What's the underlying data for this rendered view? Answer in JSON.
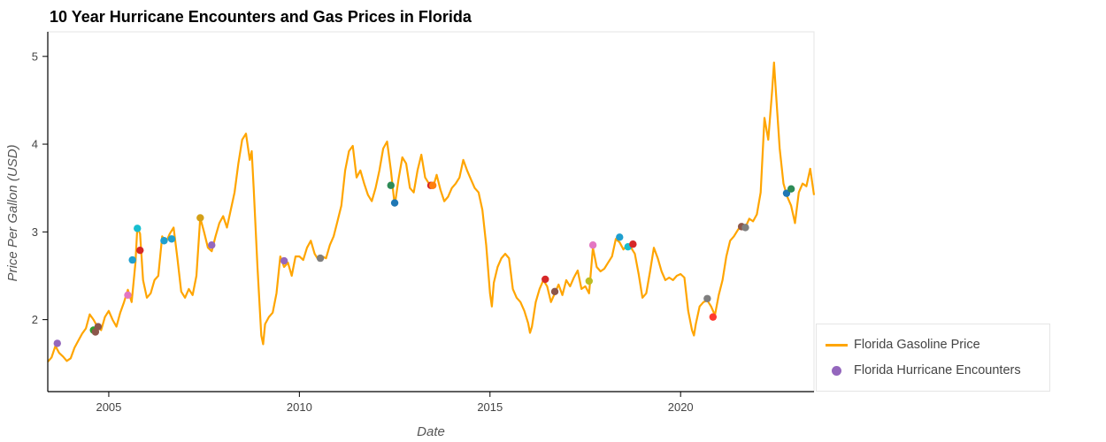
{
  "chart_data": {
    "type": "line",
    "title": "10 Year Hurricane Encounters and Gas Prices in Florida",
    "xlabel": "Date",
    "ylabel": "Price Per Gallon (USD)",
    "xlim": [
      2003.4,
      2023.5
    ],
    "ylim": [
      1.18,
      5.28
    ],
    "x_ticks": [
      {
        "value": 2005,
        "label": "2005"
      },
      {
        "value": 2010,
        "label": "2010"
      },
      {
        "value": 2015,
        "label": "2015"
      },
      {
        "value": 2020,
        "label": "2020"
      }
    ],
    "y_ticks": [
      {
        "value": 2,
        "label": "2"
      },
      {
        "value": 3,
        "label": "3"
      },
      {
        "value": 4,
        "label": "4"
      },
      {
        "value": 5,
        "label": "5"
      }
    ],
    "grid": false,
    "legend_position": "bottom-right-outside",
    "series": [
      {
        "name": "Florida Gasoline Price",
        "kind": "line",
        "color": "#ffa500",
        "points": [
          [
            2003.4,
            1.52
          ],
          [
            2003.5,
            1.57
          ],
          [
            2003.6,
            1.7
          ],
          [
            2003.7,
            1.62
          ],
          [
            2003.8,
            1.58
          ],
          [
            2003.9,
            1.53
          ],
          [
            2004.0,
            1.56
          ],
          [
            2004.1,
            1.68
          ],
          [
            2004.2,
            1.76
          ],
          [
            2004.3,
            1.84
          ],
          [
            2004.4,
            1.9
          ],
          [
            2004.5,
            2.06
          ],
          [
            2004.6,
            2.0
          ],
          [
            2004.7,
            1.92
          ],
          [
            2004.8,
            1.88
          ],
          [
            2004.9,
            2.03
          ],
          [
            2005.0,
            2.1
          ],
          [
            2005.1,
            2.0
          ],
          [
            2005.2,
            1.92
          ],
          [
            2005.3,
            2.08
          ],
          [
            2005.4,
            2.2
          ],
          [
            2005.5,
            2.34
          ],
          [
            2005.6,
            2.2
          ],
          [
            2005.7,
            2.65
          ],
          [
            2005.75,
            3.05
          ],
          [
            2005.82,
            2.98
          ],
          [
            2005.9,
            2.45
          ],
          [
            2006.0,
            2.25
          ],
          [
            2006.1,
            2.3
          ],
          [
            2006.2,
            2.45
          ],
          [
            2006.3,
            2.5
          ],
          [
            2006.4,
            2.95
          ],
          [
            2006.5,
            2.88
          ],
          [
            2006.6,
            2.98
          ],
          [
            2006.7,
            3.05
          ],
          [
            2006.8,
            2.7
          ],
          [
            2006.9,
            2.32
          ],
          [
            2007.0,
            2.25
          ],
          [
            2007.1,
            2.35
          ],
          [
            2007.2,
            2.28
          ],
          [
            2007.3,
            2.5
          ],
          [
            2007.4,
            3.16
          ],
          [
            2007.5,
            3.0
          ],
          [
            2007.6,
            2.82
          ],
          [
            2007.7,
            2.78
          ],
          [
            2007.8,
            2.95
          ],
          [
            2007.9,
            3.1
          ],
          [
            2008.0,
            3.18
          ],
          [
            2008.1,
            3.05
          ],
          [
            2008.2,
            3.25
          ],
          [
            2008.3,
            3.45
          ],
          [
            2008.4,
            3.78
          ],
          [
            2008.5,
            4.05
          ],
          [
            2008.6,
            4.12
          ],
          [
            2008.7,
            3.82
          ],
          [
            2008.75,
            3.92
          ],
          [
            2008.8,
            3.5
          ],
          [
            2008.9,
            2.6
          ],
          [
            2009.0,
            1.82
          ],
          [
            2009.05,
            1.72
          ],
          [
            2009.1,
            1.95
          ],
          [
            2009.2,
            2.03
          ],
          [
            2009.3,
            2.08
          ],
          [
            2009.4,
            2.3
          ],
          [
            2009.5,
            2.72
          ],
          [
            2009.6,
            2.6
          ],
          [
            2009.7,
            2.65
          ],
          [
            2009.8,
            2.5
          ],
          [
            2009.9,
            2.72
          ],
          [
            2010.0,
            2.72
          ],
          [
            2010.1,
            2.68
          ],
          [
            2010.2,
            2.82
          ],
          [
            2010.3,
            2.9
          ],
          [
            2010.4,
            2.75
          ],
          [
            2010.5,
            2.68
          ],
          [
            2010.6,
            2.72
          ],
          [
            2010.7,
            2.7
          ],
          [
            2010.8,
            2.85
          ],
          [
            2010.9,
            2.95
          ],
          [
            2011.0,
            3.12
          ],
          [
            2011.1,
            3.3
          ],
          [
            2011.2,
            3.7
          ],
          [
            2011.3,
            3.92
          ],
          [
            2011.4,
            3.98
          ],
          [
            2011.5,
            3.62
          ],
          [
            2011.6,
            3.7
          ],
          [
            2011.7,
            3.55
          ],
          [
            2011.8,
            3.42
          ],
          [
            2011.9,
            3.35
          ],
          [
            2012.0,
            3.5
          ],
          [
            2012.1,
            3.7
          ],
          [
            2012.2,
            3.95
          ],
          [
            2012.3,
            4.03
          ],
          [
            2012.4,
            3.7
          ],
          [
            2012.5,
            3.3
          ],
          [
            2012.6,
            3.6
          ],
          [
            2012.7,
            3.85
          ],
          [
            2012.8,
            3.78
          ],
          [
            2012.9,
            3.5
          ],
          [
            2013.0,
            3.45
          ],
          [
            2013.1,
            3.7
          ],
          [
            2013.2,
            3.88
          ],
          [
            2013.3,
            3.62
          ],
          [
            2013.4,
            3.55
          ],
          [
            2013.5,
            3.5
          ],
          [
            2013.6,
            3.65
          ],
          [
            2013.7,
            3.48
          ],
          [
            2013.8,
            3.35
          ],
          [
            2013.9,
            3.4
          ],
          [
            2014.0,
            3.5
          ],
          [
            2014.1,
            3.55
          ],
          [
            2014.2,
            3.62
          ],
          [
            2014.3,
            3.82
          ],
          [
            2014.4,
            3.7
          ],
          [
            2014.5,
            3.6
          ],
          [
            2014.6,
            3.5
          ],
          [
            2014.7,
            3.45
          ],
          [
            2014.8,
            3.25
          ],
          [
            2014.9,
            2.85
          ],
          [
            2015.0,
            2.3
          ],
          [
            2015.05,
            2.15
          ],
          [
            2015.1,
            2.42
          ],
          [
            2015.2,
            2.6
          ],
          [
            2015.3,
            2.7
          ],
          [
            2015.4,
            2.75
          ],
          [
            2015.5,
            2.7
          ],
          [
            2015.6,
            2.35
          ],
          [
            2015.7,
            2.25
          ],
          [
            2015.8,
            2.2
          ],
          [
            2015.9,
            2.1
          ],
          [
            2016.0,
            1.96
          ],
          [
            2016.05,
            1.85
          ],
          [
            2016.1,
            1.92
          ],
          [
            2016.2,
            2.2
          ],
          [
            2016.3,
            2.35
          ],
          [
            2016.4,
            2.45
          ],
          [
            2016.5,
            2.38
          ],
          [
            2016.6,
            2.2
          ],
          [
            2016.7,
            2.3
          ],
          [
            2016.8,
            2.4
          ],
          [
            2016.9,
            2.28
          ],
          [
            2017.0,
            2.45
          ],
          [
            2017.1,
            2.38
          ],
          [
            2017.2,
            2.48
          ],
          [
            2017.3,
            2.56
          ],
          [
            2017.4,
            2.35
          ],
          [
            2017.5,
            2.38
          ],
          [
            2017.6,
            2.3
          ],
          [
            2017.7,
            2.82
          ],
          [
            2017.8,
            2.6
          ],
          [
            2017.9,
            2.55
          ],
          [
            2018.0,
            2.58
          ],
          [
            2018.1,
            2.65
          ],
          [
            2018.2,
            2.72
          ],
          [
            2018.3,
            2.92
          ],
          [
            2018.4,
            2.88
          ],
          [
            2018.5,
            2.8
          ],
          [
            2018.6,
            2.85
          ],
          [
            2018.7,
            2.82
          ],
          [
            2018.8,
            2.75
          ],
          [
            2018.9,
            2.52
          ],
          [
            2019.0,
            2.25
          ],
          [
            2019.1,
            2.3
          ],
          [
            2019.2,
            2.55
          ],
          [
            2019.3,
            2.82
          ],
          [
            2019.4,
            2.7
          ],
          [
            2019.5,
            2.55
          ],
          [
            2019.6,
            2.45
          ],
          [
            2019.7,
            2.48
          ],
          [
            2019.8,
            2.45
          ],
          [
            2019.9,
            2.5
          ],
          [
            2020.0,
            2.52
          ],
          [
            2020.1,
            2.48
          ],
          [
            2020.2,
            2.1
          ],
          [
            2020.3,
            1.88
          ],
          [
            2020.35,
            1.82
          ],
          [
            2020.4,
            1.95
          ],
          [
            2020.5,
            2.15
          ],
          [
            2020.6,
            2.2
          ],
          [
            2020.7,
            2.22
          ],
          [
            2020.8,
            2.15
          ],
          [
            2020.9,
            2.05
          ],
          [
            2021.0,
            2.28
          ],
          [
            2021.1,
            2.45
          ],
          [
            2021.2,
            2.72
          ],
          [
            2021.3,
            2.9
          ],
          [
            2021.4,
            2.95
          ],
          [
            2021.5,
            3.02
          ],
          [
            2021.6,
            3.08
          ],
          [
            2021.7,
            3.05
          ],
          [
            2021.8,
            3.15
          ],
          [
            2021.9,
            3.12
          ],
          [
            2022.0,
            3.2
          ],
          [
            2022.1,
            3.45
          ],
          [
            2022.2,
            4.3
          ],
          [
            2022.3,
            4.05
          ],
          [
            2022.4,
            4.6
          ],
          [
            2022.45,
            4.93
          ],
          [
            2022.5,
            4.6
          ],
          [
            2022.6,
            3.95
          ],
          [
            2022.7,
            3.55
          ],
          [
            2022.8,
            3.4
          ],
          [
            2022.9,
            3.3
          ],
          [
            2023.0,
            3.1
          ],
          [
            2023.1,
            3.45
          ],
          [
            2023.2,
            3.55
          ],
          [
            2023.3,
            3.52
          ],
          [
            2023.4,
            3.72
          ],
          [
            2023.5,
            3.42
          ]
        ]
      },
      {
        "name": "Florida Hurricane Encounters",
        "kind": "scatter",
        "legend_color": "#9467bd",
        "points": [
          {
            "x": 2003.65,
            "y": 1.73,
            "color": "#9467bd"
          },
          {
            "x": 2004.6,
            "y": 1.88,
            "color": "#2ca02c"
          },
          {
            "x": 2004.65,
            "y": 1.86,
            "color": "#8c564b"
          },
          {
            "x": 2004.72,
            "y": 1.92,
            "color": "#8c564b"
          },
          {
            "x": 2005.5,
            "y": 2.28,
            "color": "#e377c2"
          },
          {
            "x": 2005.62,
            "y": 2.68,
            "color": "#1f9fcf"
          },
          {
            "x": 2005.75,
            "y": 3.04,
            "color": "#17becf"
          },
          {
            "x": 2005.82,
            "y": 2.79,
            "color": "#d62728"
          },
          {
            "x": 2006.45,
            "y": 2.9,
            "color": "#1f9fcf"
          },
          {
            "x": 2006.65,
            "y": 2.92,
            "color": "#1f9fcf"
          },
          {
            "x": 2007.4,
            "y": 3.16,
            "color": "#d4a017"
          },
          {
            "x": 2007.7,
            "y": 2.85,
            "color": "#9467bd"
          },
          {
            "x": 2009.6,
            "y": 2.67,
            "color": "#9467bd"
          },
          {
            "x": 2010.55,
            "y": 2.7,
            "color": "#7f7f7f"
          },
          {
            "x": 2012.4,
            "y": 3.53,
            "color": "#2e8b57"
          },
          {
            "x": 2012.5,
            "y": 3.33,
            "color": "#1f77b4"
          },
          {
            "x": 2013.45,
            "y": 3.53,
            "color": "#d62728"
          },
          {
            "x": 2013.5,
            "y": 3.53,
            "color": "#ff7f0e"
          },
          {
            "x": 2016.45,
            "y": 2.46,
            "color": "#d62728"
          },
          {
            "x": 2016.7,
            "y": 2.32,
            "color": "#8c564b"
          },
          {
            "x": 2017.6,
            "y": 2.44,
            "color": "#bcbd22"
          },
          {
            "x": 2017.7,
            "y": 2.85,
            "color": "#e377c2"
          },
          {
            "x": 2018.4,
            "y": 2.94,
            "color": "#1f9fcf"
          },
          {
            "x": 2018.62,
            "y": 2.83,
            "color": "#17becf"
          },
          {
            "x": 2018.75,
            "y": 2.86,
            "color": "#d62728"
          },
          {
            "x": 2020.7,
            "y": 2.24,
            "color": "#7f7f7f"
          },
          {
            "x": 2020.85,
            "y": 2.03,
            "color": "#ff3b30"
          },
          {
            "x": 2021.6,
            "y": 3.06,
            "color": "#8c564b"
          },
          {
            "x": 2021.7,
            "y": 3.05,
            "color": "#7f7f7f"
          },
          {
            "x": 2022.78,
            "y": 3.44,
            "color": "#1f77b4"
          },
          {
            "x": 2022.9,
            "y": 3.49,
            "color": "#2e8b57"
          }
        ]
      }
    ]
  }
}
